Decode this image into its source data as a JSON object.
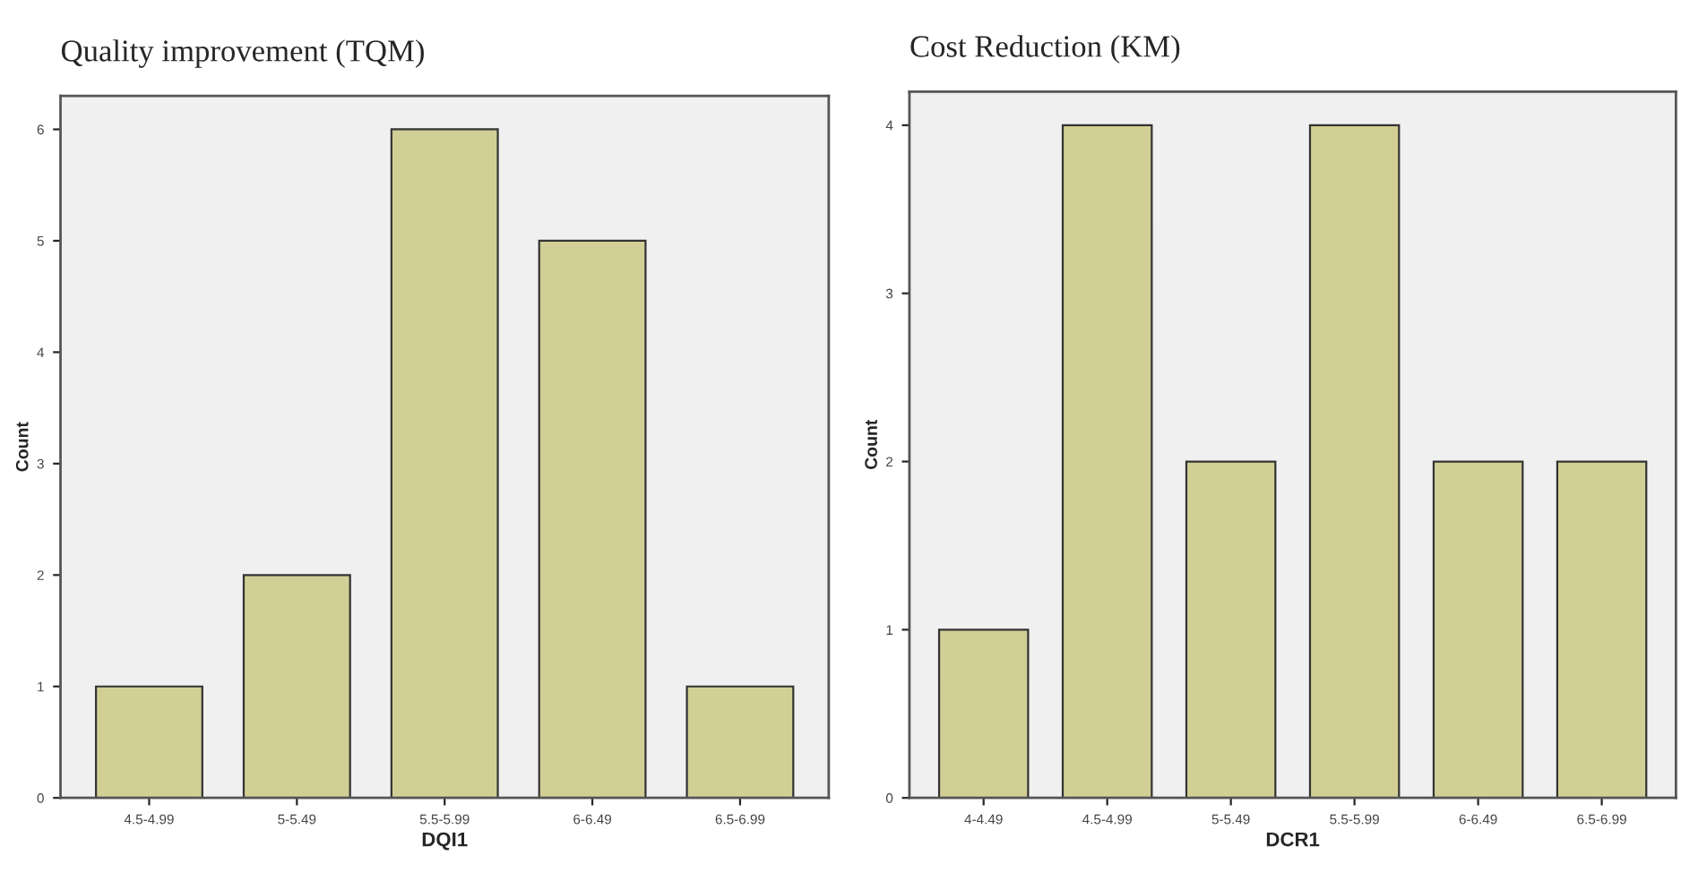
{
  "chart_data": [
    {
      "type": "bar",
      "title": "Quality improvement (TQM)",
      "xlabel": "DQI1",
      "ylabel": "Count",
      "categories": [
        "4.5-4.99",
        "5-5.49",
        "5.5-5.99",
        "6-6.49",
        "6.5-6.99"
      ],
      "values": [
        1,
        2,
        6,
        5,
        1
      ],
      "color": "#d2cf96",
      "ylim": [
        0,
        6.3
      ],
      "yticks": [
        0,
        1,
        2,
        3,
        4,
        5,
        6
      ],
      "grid": false,
      "legend": false
    },
    {
      "type": "bar",
      "title": "Cost Reduction (KM)",
      "xlabel": "DCR1",
      "ylabel": "Count",
      "categories": [
        "4-4.49",
        "4.5-4.99",
        "5-5.49",
        "5.5-5.99",
        "6-6.49",
        "6.5-6.99"
      ],
      "values": [
        1,
        4,
        2,
        4,
        2,
        2
      ],
      "color": "#d2cf96",
      "ylim": [
        0,
        4.2
      ],
      "yticks": [
        0,
        1,
        2,
        3,
        4
      ],
      "grid": false,
      "legend": false
    }
  ]
}
